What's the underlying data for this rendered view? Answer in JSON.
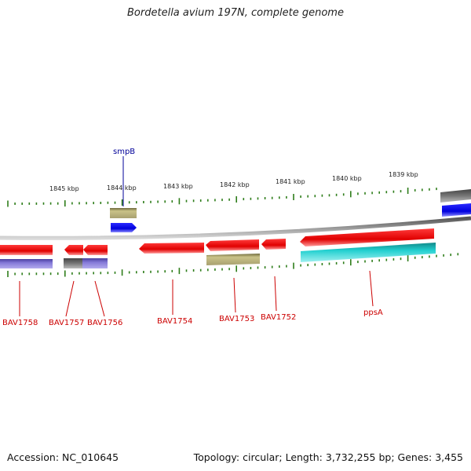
{
  "header": {
    "title": "Bordetella avium 197N, complete genome"
  },
  "footer": {
    "accession": "Accession: NC_010645",
    "summary": "Topology: circular; Length: 3,732,255 bp; Genes: 3,455"
  },
  "scale": {
    "ticks": [
      {
        "label": "1845 kbp"
      },
      {
        "label": "1844 kbp"
      },
      {
        "label": "1843 kbp"
      },
      {
        "label": "1842 kbp"
      },
      {
        "label": "1841 kbp"
      },
      {
        "label": "1840 kbp"
      },
      {
        "label": "1839 kbp"
      }
    ]
  },
  "genes": [
    {
      "name": "smpB",
      "color": "#000099"
    },
    {
      "name": "BAV1758",
      "color": "#cc0000"
    },
    {
      "name": "BAV1757",
      "color": "#cc0000"
    },
    {
      "name": "BAV1756",
      "color": "#cc0000"
    },
    {
      "name": "BAV1754",
      "color": "#cc0000"
    },
    {
      "name": "BAV1753",
      "color": "#cc0000"
    },
    {
      "name": "BAV1752",
      "color": "#cc0000"
    },
    {
      "name": "ppsA",
      "color": "#cc0000"
    }
  ],
  "colors": {
    "backbone": "#8a8a8a",
    "forward_cds": "#0000ee",
    "reverse_cds": "#ee0000",
    "tick": "#2e7d1a",
    "olive_feature": "#b7b07a",
    "purple_feature": "#7b6fd0",
    "cyan_feature": "#22cccc",
    "gray_feature": "#666666"
  }
}
